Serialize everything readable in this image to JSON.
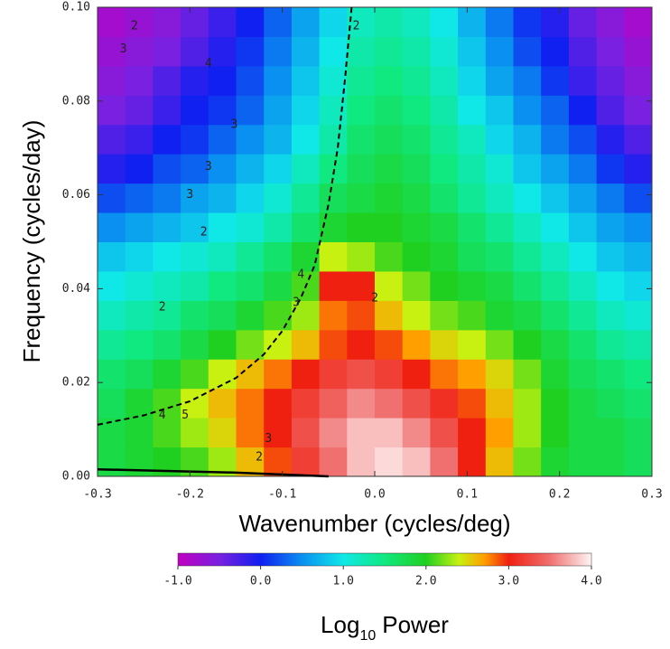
{
  "chart_data": {
    "type": "heatmap",
    "x_label": "Wavenumber (cycles/deg)",
    "y_label": "Frequency (cycles/day)",
    "x": [
      -0.285,
      -0.255,
      -0.225,
      -0.195,
      -0.165,
      -0.135,
      -0.105,
      -0.075,
      -0.045,
      -0.015,
      0.015,
      0.045,
      0.075,
      0.105,
      0.135,
      0.165,
      0.195,
      0.225,
      0.255,
      0.285
    ],
    "y": [
      0.003125,
      0.009375,
      0.015625,
      0.021875,
      0.028125,
      0.034375,
      0.040625,
      0.046875,
      0.053125,
      0.059375,
      0.065625,
      0.071875,
      0.078125,
      0.084375,
      0.090625,
      0.096875
    ],
    "values": [
      [
        1.8,
        1.9,
        2.0,
        2.1,
        2.3,
        2.6,
        2.9,
        3.2,
        3.5,
        3.8,
        3.9,
        3.8,
        3.5,
        3.0,
        2.6,
        2.2,
        1.9,
        1.8,
        1.8,
        1.7
      ],
      [
        1.8,
        1.9,
        2.1,
        2.3,
        2.5,
        2.8,
        3.0,
        3.3,
        3.6,
        3.8,
        3.8,
        3.6,
        3.3,
        3.0,
        2.7,
        2.3,
        2.0,
        1.8,
        1.8,
        1.7
      ],
      [
        1.7,
        1.9,
        2.1,
        2.4,
        2.6,
        2.8,
        3.0,
        3.2,
        3.4,
        3.6,
        3.5,
        3.3,
        3.1,
        2.9,
        2.6,
        2.3,
        2.0,
        1.8,
        1.7,
        1.6
      ],
      [
        1.6,
        1.7,
        1.9,
        2.1,
        2.4,
        2.6,
        2.8,
        3.0,
        3.2,
        3.3,
        3.2,
        3.0,
        2.8,
        2.7,
        2.5,
        2.2,
        1.9,
        1.7,
        1.6,
        1.5
      ],
      [
        1.4,
        1.5,
        1.6,
        1.8,
        2.0,
        2.2,
        2.4,
        2.6,
        2.9,
        3.0,
        2.9,
        2.7,
        2.5,
        2.4,
        2.2,
        2.0,
        1.8,
        1.6,
        1.4,
        1.3
      ],
      [
        1.2,
        1.3,
        1.4,
        1.6,
        1.7,
        1.9,
        2.1,
        2.3,
        2.8,
        2.9,
        2.6,
        2.4,
        2.2,
        2.1,
        1.9,
        1.8,
        1.6,
        1.4,
        1.2,
        1.1
      ],
      [
        1.0,
        1.1,
        1.2,
        1.3,
        1.5,
        1.6,
        1.8,
        2.1,
        3.0,
        3.0,
        2.4,
        2.2,
        2.0,
        1.9,
        1.8,
        1.6,
        1.4,
        1.2,
        1.0,
        0.9
      ],
      [
        0.8,
        0.9,
        1.0,
        1.1,
        1.2,
        1.4,
        1.6,
        1.9,
        2.4,
        2.3,
        2.1,
        2.0,
        1.9,
        1.7,
        1.6,
        1.4,
        1.2,
        1.0,
        0.8,
        0.7
      ],
      [
        0.5,
        0.6,
        0.7,
        0.8,
        1.0,
        1.1,
        1.3,
        1.6,
        1.9,
        2.0,
        2.0,
        1.9,
        1.8,
        1.6,
        1.4,
        1.2,
        1.0,
        0.8,
        0.6,
        0.5
      ],
      [
        0.2,
        0.3,
        0.4,
        0.6,
        0.7,
        0.9,
        1.1,
        1.4,
        1.7,
        1.8,
        1.9,
        1.8,
        1.6,
        1.4,
        1.2,
        1.0,
        0.8,
        0.6,
        0.4,
        0.2
      ],
      [
        -0.1,
        0.0,
        0.2,
        0.3,
        0.5,
        0.7,
        0.9,
        1.2,
        1.5,
        1.7,
        1.8,
        1.7,
        1.5,
        1.3,
        1.1,
        0.8,
        0.6,
        0.4,
        0.1,
        -0.1
      ],
      [
        -0.3,
        -0.2,
        0.0,
        0.1,
        0.3,
        0.5,
        0.7,
        1.0,
        1.3,
        1.6,
        1.7,
        1.6,
        1.4,
        1.2,
        0.9,
        0.7,
        0.4,
        0.2,
        -0.1,
        -0.3
      ],
      [
        -0.5,
        -0.4,
        -0.2,
        0.0,
        0.1,
        0.3,
        0.6,
        0.9,
        1.2,
        1.5,
        1.6,
        1.5,
        1.3,
        1.0,
        0.8,
        0.5,
        0.3,
        0.0,
        -0.3,
        -0.5
      ],
      [
        -0.6,
        -0.5,
        -0.3,
        -0.1,
        0.0,
        0.2,
        0.5,
        0.8,
        1.1,
        1.4,
        1.5,
        1.4,
        1.2,
        0.9,
        0.6,
        0.4,
        0.1,
        -0.2,
        -0.4,
        -0.6
      ],
      [
        -0.7,
        -0.6,
        -0.5,
        -0.3,
        -0.1,
        0.1,
        0.4,
        0.7,
        1.0,
        1.3,
        1.4,
        1.3,
        1.1,
        0.8,
        0.5,
        0.2,
        0.0,
        -0.3,
        -0.5,
        -0.7
      ],
      [
        -0.8,
        -0.7,
        -0.6,
        -0.4,
        -0.2,
        0.0,
        0.3,
        0.6,
        0.9,
        1.2,
        1.3,
        1.2,
        1.0,
        0.7,
        0.4,
        0.1,
        -0.1,
        -0.4,
        -0.6,
        -0.8
      ]
    ],
    "xlim": [
      -0.3,
      0.3
    ],
    "ylim": [
      0,
      0.1
    ],
    "xticks": [
      -0.3,
      -0.2,
      -0.1,
      {
        "value": 0,
        "label": "0.0"
      },
      0.1,
      0.2,
      0.3
    ],
    "yticks": [
      {
        "value": 0,
        "label": "0.00"
      },
      {
        "value": 0.02,
        "label": "0.02"
      },
      {
        "value": 0.04,
        "label": "0.04"
      },
      {
        "value": 0.06,
        "label": "0.06"
      },
      {
        "value": 0.08,
        "label": "0.08"
      },
      {
        "value": 0.1,
        "label": "0.10"
      }
    ],
    "colormap": [
      {
        "value": -1,
        "color": "#c000c0"
      },
      {
        "value": -0.5,
        "color": "#7a20e0"
      },
      {
        "value": 0,
        "color": "#1020f0"
      },
      {
        "value": 0.5,
        "color": "#0a90f0"
      },
      {
        "value": 1,
        "color": "#10e8e8"
      },
      {
        "value": 1.5,
        "color": "#10e880"
      },
      {
        "value": 2,
        "color": "#20d020"
      },
      {
        "value": 2.4,
        "color": "#c8f010"
      },
      {
        "value": 2.7,
        "color": "#ffa000"
      },
      {
        "value": 3,
        "color": "#f02010"
      },
      {
        "value": 3.5,
        "color": "#f07070"
      },
      {
        "value": 4,
        "color": "#fff4f4"
      }
    ],
    "colorbar": {
      "lim": [
        -1,
        4
      ],
      "ticks": [
        {
          "value": -1,
          "label": "-1.0"
        },
        {
          "value": 0,
          "label": "0.0"
        },
        {
          "value": 1,
          "label": "1.0"
        },
        {
          "value": 2,
          "label": "2.0"
        },
        {
          "value": 3,
          "label": "3.0"
        },
        {
          "value": 4,
          "label": "4.0"
        }
      ],
      "title": {
        "base": "Log",
        "sub": "10",
        "rest": "Power"
      }
    },
    "curves": [
      {
        "style": "dashed",
        "x": [
          -0.3,
          -0.25,
          -0.2,
          -0.15,
          -0.12,
          -0.1,
          -0.08,
          -0.065,
          -0.05,
          -0.04,
          -0.032,
          -0.025
        ],
        "y": [
          0.011,
          0.013,
          0.016,
          0.021,
          0.026,
          0.031,
          0.038,
          0.045,
          0.058,
          0.07,
          0.085,
          0.1
        ]
      },
      {
        "style": "solid",
        "x": [
          -0.3,
          -0.15,
          -0.05
        ],
        "y": [
          0.0015,
          0.0008,
          0
        ]
      }
    ],
    "contour_labels": [
      {
        "label": "2",
        "x": -0.26,
        "y": 0.096
      },
      {
        "label": "3",
        "x": -0.272,
        "y": 0.091
      },
      {
        "label": "4",
        "x": -0.18,
        "y": 0.088
      },
      {
        "label": "3",
        "x": -0.152,
        "y": 0.075
      },
      {
        "label": "3",
        "x": -0.18,
        "y": 0.066
      },
      {
        "label": "3",
        "x": -0.2,
        "y": 0.06
      },
      {
        "label": "2",
        "x": -0.185,
        "y": 0.052
      },
      {
        "label": "2",
        "x": -0.02,
        "y": 0.096
      },
      {
        "label": "2",
        "x": -0.23,
        "y": 0.036
      },
      {
        "label": "4",
        "x": -0.08,
        "y": 0.043
      },
      {
        "label": "3",
        "x": -0.085,
        "y": 0.037
      },
      {
        "label": "2",
        "x": 0.0,
        "y": 0.038
      },
      {
        "label": "4",
        "x": -0.23,
        "y": 0.013
      },
      {
        "label": "5",
        "x": -0.205,
        "y": 0.013
      },
      {
        "label": "3",
        "x": -0.115,
        "y": 0.008
      },
      {
        "label": "2",
        "x": -0.125,
        "y": 0.004
      }
    ]
  }
}
